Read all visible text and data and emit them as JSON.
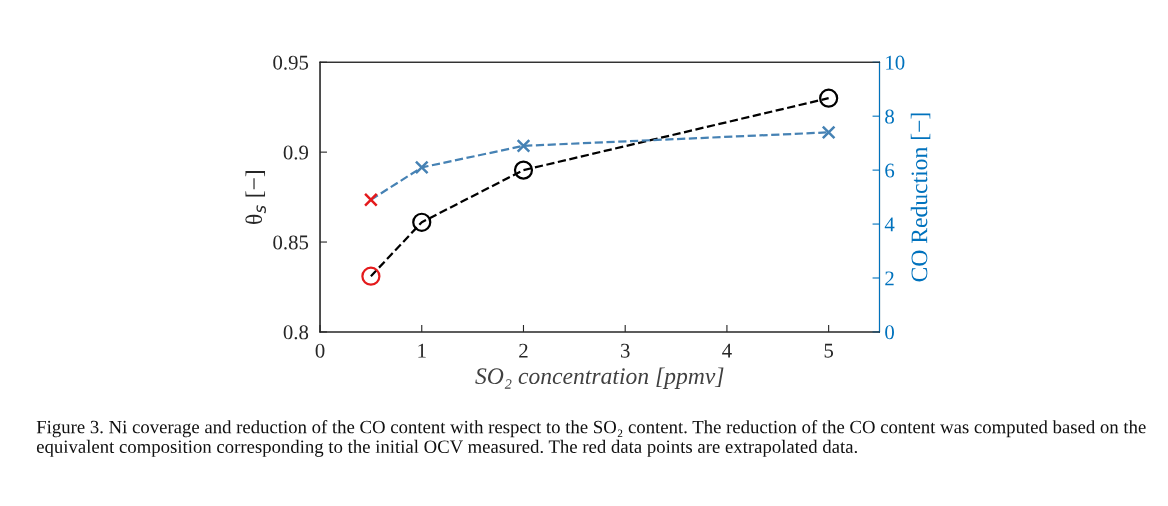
{
  "chart_data": {
    "type": "line",
    "xlabel": "SO₂ concentration [ppmv]",
    "ylabel": "θ$_{s}$ [−]",
    "y2label": "CO Reduction [−]",
    "x": [
      0.5,
      1,
      2,
      5
    ],
    "series": [
      {
        "color": "#000000",
        "colors": [
          "#e41a1c",
          "#000000",
          "#000000",
          "#000000"
        ],
        "marker": "circle",
        "line_style": "dashed",
        "values": [
          0.831,
          0.861,
          0.89,
          0.93
        ]
      },
      {
        "axis": "y2",
        "color": "#4682b4",
        "colors": [
          "#e41a1c",
          "#4682b4",
          "#4682b4",
          "#4682b4"
        ],
        "marker": "cross",
        "line_style": "dashed",
        "values": [
          4.9,
          6.1,
          6.9,
          7.4
        ]
      }
    ],
    "xlim": [
      0,
      5.5
    ],
    "xticks": [
      0,
      1,
      2,
      3,
      4,
      5
    ],
    "ylim": [
      0.8,
      0.95
    ],
    "yticks": [
      0.8,
      0.85,
      0.9,
      0.95
    ],
    "y2lim": [
      0,
      10
    ],
    "y2ticks": [
      0,
      2,
      4,
      6,
      8,
      10
    ],
    "grid": false,
    "legend": false,
    "annotations": [
      "Figure 3. Ni coverage and reduction of the CO content with respect to the SO₂ content. The reduction of the CO content was computed based on the equivalent composition corresponding to the initial OCV measured. The red data points are extrapolated data."
    ]
  }
}
